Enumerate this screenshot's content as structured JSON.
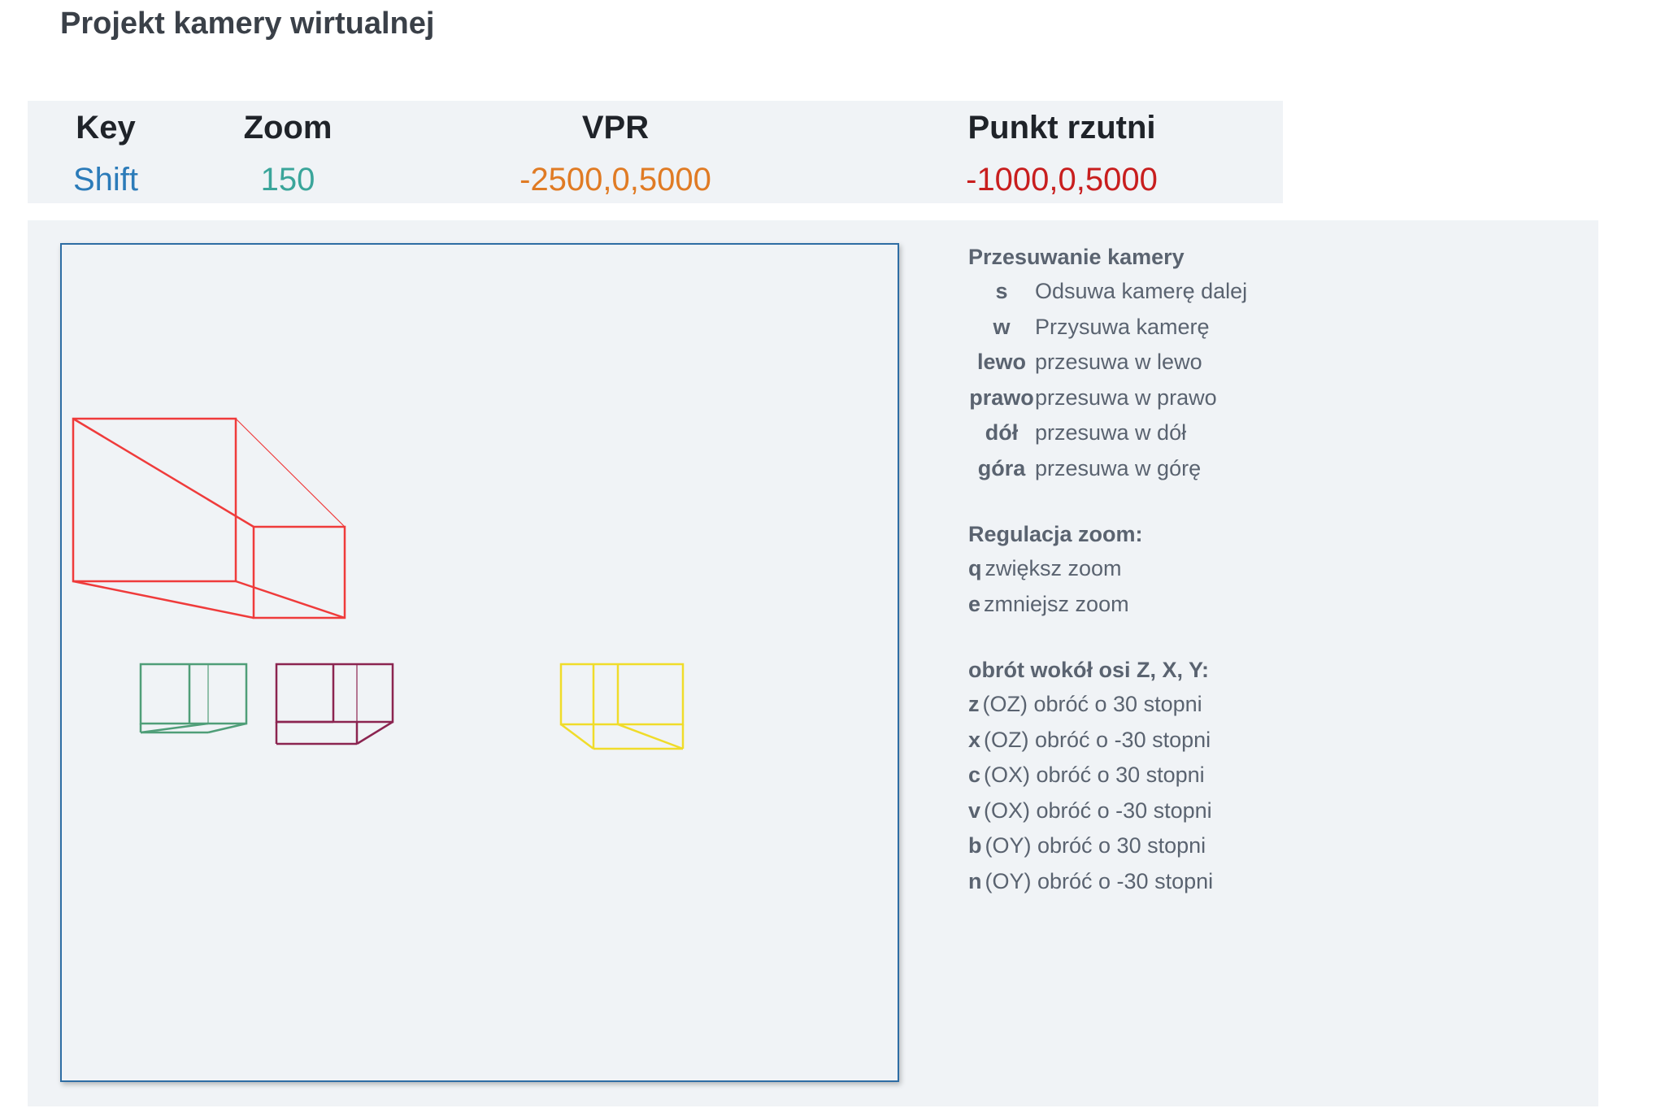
{
  "page": {
    "title": "Projekt kamery wirtualnej"
  },
  "status": {
    "columns": [
      {
        "header": "Key",
        "value": "Shift",
        "color": "#2b7bb9"
      },
      {
        "header": "Zoom",
        "value": "150",
        "color": "#3aa59a"
      },
      {
        "header": "VPR",
        "value": "-2500,0,5000",
        "color": "#e07b24"
      },
      {
        "header": "Punkt rzutni",
        "value": "-1000,0,5000",
        "color": "#c81e1e"
      }
    ]
  },
  "help": {
    "camera_heading": "Przesuwanie kamery",
    "camera_keys": [
      {
        "key": "s",
        "desc": "Odsuwa kamerę dalej"
      },
      {
        "key": "w",
        "desc": "Przysuwa kamerę"
      },
      {
        "key": "lewo",
        "desc": "przesuwa w lewo"
      },
      {
        "key": "prawo",
        "desc": "przesuwa w prawo"
      },
      {
        "key": "dół",
        "desc": "przesuwa w dół"
      },
      {
        "key": "góra",
        "desc": "przesuwa w górę"
      }
    ],
    "zoom_heading": "Regulacja zoom:",
    "zoom_keys": [
      {
        "key": "q",
        "desc": "zwiększ zoom"
      },
      {
        "key": "e",
        "desc": "zmniejsz zoom"
      }
    ],
    "rotation_heading": "obrót wokół osi Z, X, Y:",
    "rotation_keys": [
      {
        "key": "z",
        "desc": "(OZ) obróć o 30 stopni"
      },
      {
        "key": "x",
        "desc": "(OZ) obróć o -30 stopni"
      },
      {
        "key": "c",
        "desc": "(OX) obróć o 30 stopni"
      },
      {
        "key": "v",
        "desc": "(OX) obróć o -30 stopni"
      },
      {
        "key": "b",
        "desc": "(OY) obróć o 30 stopni"
      },
      {
        "key": "n",
        "desc": "(OY) obróć o -30 stopni"
      }
    ]
  },
  "scene": {
    "cuboids": [
      {
        "name": "red-cuboid",
        "color": "#ef3b3b"
      },
      {
        "name": "green-cuboid",
        "color": "#4f9e78"
      },
      {
        "name": "maroon-cuboid",
        "color": "#8b2450"
      },
      {
        "name": "yellow-cuboid",
        "color": "#f0dc2a"
      }
    ]
  }
}
